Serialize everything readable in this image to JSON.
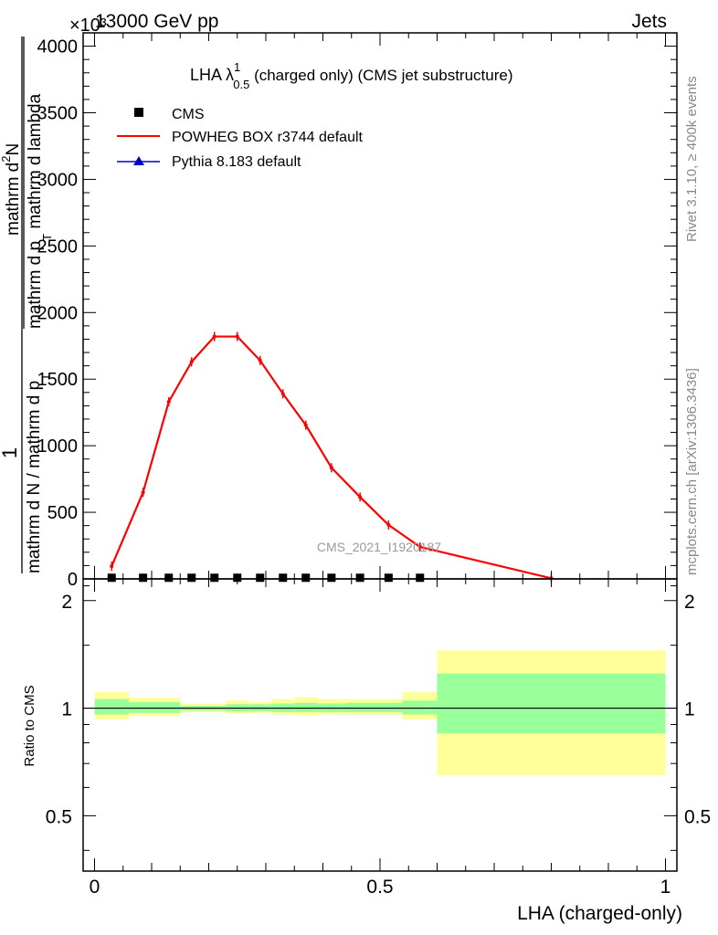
{
  "header": {
    "energy_label": "13000 GeV pp",
    "process_label": "Jets",
    "scale_label": "×10³"
  },
  "side_labels": {
    "rivet": "Rivet 3.1.10, ≥ 400k events",
    "mcplots": "mcplots.cern.ch [arXiv:1306.3436]"
  },
  "watermark": "CMS_2021_I1920187",
  "colors": {
    "cms": "#000000",
    "powheg": "#ff0000",
    "pythia": "#0000cc",
    "band_inner": "#99ff99",
    "band_outer": "#ffff99"
  },
  "chart_data": [
    {
      "type": "line",
      "title": "LHA λ^1_0.5 (charged only) (CMS jet substructure)",
      "title_main": "LHA λ",
      "title_sup": "1",
      "title_sub": "0.5",
      "title_rest": " (charged only) (CMS jet substructure)",
      "ylabel": "1 / mathrm d N / mathrm d p_T mathrm d^2N / mathrm d p_T mathrm d lambda",
      "ylabel_parts": {
        "one": "1",
        "den": "mathrm d N / mathrm d p",
        "den_sub": "T",
        "num_top": "mathrm d",
        "num_sup": "2",
        "num_n": "N",
        "num_bottom": "mathrm d p",
        "num_bottom_sub": "T",
        "num_bottom_rest": " mathrm d lambda"
      },
      "ylim": [
        0,
        4100
      ],
      "yticks": [
        0,
        500,
        1000,
        1500,
        2000,
        2500,
        3000,
        3500,
        4000
      ],
      "yticklabels": [
        "0",
        "500",
        "1000",
        "1500",
        "2000",
        "2500",
        "3000",
        "3500",
        "4000"
      ],
      "xlim": [
        -0.02,
        1.02
      ],
      "legend": [
        {
          "label": "CMS",
          "marker": "square"
        },
        {
          "label": "POWHEG BOX r3744 default",
          "marker": "line"
        },
        {
          "label": "Pythia 8.183 default",
          "marker": "triangle"
        }
      ],
      "series": [
        {
          "name": "CMS",
          "x": [
            0.03,
            0.085,
            0.13,
            0.17,
            0.21,
            0.25,
            0.29,
            0.33,
            0.37,
            0.415,
            0.465,
            0.515,
            0.57
          ],
          "values": [
            5,
            5,
            5,
            5,
            5,
            5,
            5,
            5,
            5,
            5,
            5,
            5,
            5
          ]
        },
        {
          "name": "POWHEG BOX r3744 default",
          "x": [
            0.03,
            0.085,
            0.13,
            0.17,
            0.21,
            0.25,
            0.29,
            0.33,
            0.37,
            0.415,
            0.465,
            0.515,
            0.57,
            0.8
          ],
          "values": [
            95,
            650,
            1330,
            1630,
            1820,
            1820,
            1640,
            1390,
            1155,
            835,
            615,
            405,
            240,
            5
          ]
        },
        {
          "name": "Pythia 8.183 default",
          "x": [
            0.03,
            0.085,
            0.13,
            0.17,
            0.21,
            0.25,
            0.29,
            0.33,
            0.37,
            0.415,
            0.465,
            0.515,
            0.57
          ],
          "values": [
            5,
            5,
            5,
            5,
            5,
            5,
            5,
            5,
            5,
            5,
            5,
            5,
            5
          ]
        }
      ]
    },
    {
      "type": "area",
      "title": "",
      "ylabel": "Ratio to CMS",
      "xlabel": "LHA (charged-only)",
      "ylim": [
        0.35,
        2.3
      ],
      "yticks": [
        0.5,
        1,
        2
      ],
      "yticklabels": [
        "0.5",
        "1",
        "2"
      ],
      "xlim": [
        -0.02,
        1.02
      ],
      "xticks": [
        0,
        0.5,
        1
      ],
      "xticklabels": [
        "0",
        "0.5",
        "1"
      ],
      "reference": 1,
      "bins": [
        {
          "x0": 0.0,
          "x1": 0.06,
          "inner": [
            0.96,
            1.06
          ],
          "outer": [
            0.93,
            1.11
          ]
        },
        {
          "x0": 0.06,
          "x1": 0.15,
          "inner": [
            0.97,
            1.04
          ],
          "outer": [
            0.95,
            1.07
          ]
        },
        {
          "x0": 0.15,
          "x1": 0.23,
          "inner": [
            0.985,
            1.015
          ],
          "outer": [
            0.975,
            1.03
          ]
        },
        {
          "x0": 0.23,
          "x1": 0.27,
          "inner": [
            0.98,
            1.025
          ],
          "outer": [
            0.965,
            1.05
          ]
        },
        {
          "x0": 0.27,
          "x1": 0.31,
          "inner": [
            0.98,
            1.025
          ],
          "outer": [
            0.97,
            1.04
          ]
        },
        {
          "x0": 0.31,
          "x1": 0.35,
          "inner": [
            0.975,
            1.03
          ],
          "outer": [
            0.96,
            1.06
          ]
        },
        {
          "x0": 0.35,
          "x1": 0.39,
          "inner": [
            0.975,
            1.035
          ],
          "outer": [
            0.955,
            1.07
          ]
        },
        {
          "x0": 0.39,
          "x1": 0.44,
          "inner": [
            0.975,
            1.03
          ],
          "outer": [
            0.96,
            1.06
          ]
        },
        {
          "x0": 0.44,
          "x1": 0.54,
          "inner": [
            0.975,
            1.035
          ],
          "outer": [
            0.96,
            1.06
          ]
        },
        {
          "x0": 0.54,
          "x1": 0.6,
          "inner": [
            0.96,
            1.05
          ],
          "outer": [
            0.93,
            1.11
          ]
        },
        {
          "x0": 0.6,
          "x1": 1.0,
          "inner": [
            0.85,
            1.25
          ],
          "outer": [
            0.65,
            1.45
          ]
        }
      ]
    }
  ]
}
